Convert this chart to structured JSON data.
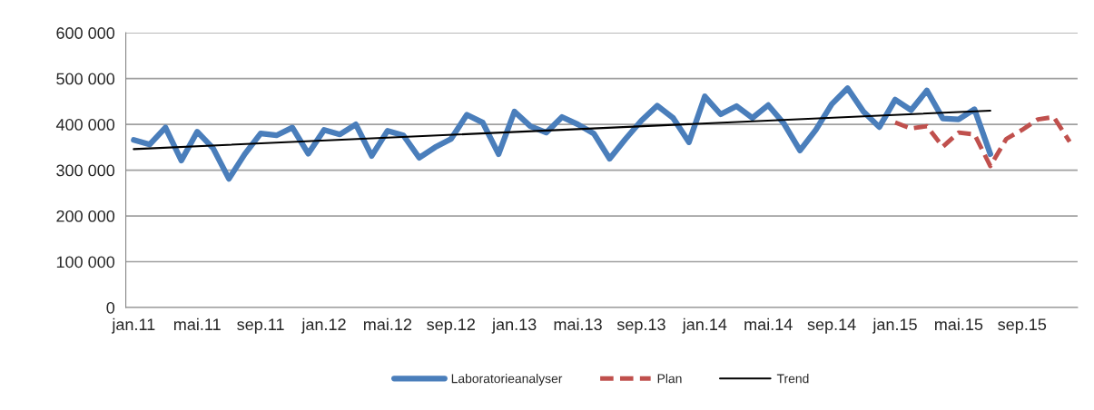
{
  "chart_data": {
    "type": "line",
    "categories": [
      "jan.11",
      null,
      null,
      null,
      "mai.11",
      null,
      null,
      null,
      "sep.11",
      null,
      null,
      null,
      "jan.12",
      null,
      null,
      null,
      "mai.12",
      null,
      null,
      null,
      "sep.12",
      null,
      null,
      null,
      "jan.13",
      null,
      null,
      null,
      "mai.13",
      null,
      null,
      null,
      "sep.13",
      null,
      null,
      null,
      "jan.14",
      null,
      null,
      null,
      "mai.14",
      null,
      null,
      null,
      "sep.14",
      null,
      null,
      null,
      "jan.15",
      null,
      null,
      null,
      "mai.15",
      null,
      null,
      null,
      "sep.15",
      null,
      null,
      null
    ],
    "series": [
      {
        "name": "Laboratorieanalyser",
        "color": "#4a7ebb",
        "line_style": "solid",
        "values": [
          366000,
          356000,
          393000,
          321000,
          384000,
          348000,
          281000,
          335000,
          380000,
          376000,
          393000,
          336000,
          388000,
          378000,
          400000,
          331000,
          386000,
          376000,
          327000,
          350000,
          368000,
          421000,
          404000,
          335000,
          428000,
          396000,
          382000,
          416000,
          400000,
          380000,
          325000,
          368000,
          408000,
          441000,
          414000,
          361000,
          461000,
          422000,
          440000,
          414000,
          442000,
          401000,
          343000,
          388000,
          444000,
          479000,
          428000,
          394000,
          454000,
          431000,
          474000,
          413000,
          411000,
          433000,
          335000,
          null,
          null,
          null,
          null,
          null
        ]
      },
      {
        "name": "Plan",
        "color": "#c0504d",
        "line_style": "dashed",
        "values": [
          null,
          null,
          null,
          null,
          null,
          null,
          null,
          null,
          null,
          null,
          null,
          null,
          null,
          null,
          null,
          null,
          null,
          null,
          null,
          null,
          null,
          null,
          null,
          null,
          null,
          null,
          null,
          null,
          null,
          null,
          null,
          null,
          null,
          null,
          null,
          null,
          null,
          null,
          null,
          null,
          null,
          null,
          null,
          null,
          null,
          null,
          null,
          null,
          404000,
          391000,
          396000,
          351000,
          382000,
          378000,
          309000,
          368000,
          388000,
          411000,
          416000,
          362000
        ]
      },
      {
        "name": "Trend",
        "color": "#000000",
        "line_style": "solid",
        "values": [
          346000,
          null,
          null,
          null,
          null,
          null,
          null,
          null,
          null,
          null,
          null,
          null,
          null,
          null,
          null,
          null,
          null,
          null,
          null,
          null,
          null,
          null,
          null,
          null,
          null,
          null,
          null,
          null,
          null,
          null,
          null,
          null,
          null,
          null,
          null,
          null,
          null,
          null,
          null,
          null,
          null,
          null,
          null,
          null,
          null,
          null,
          null,
          null,
          null,
          null,
          null,
          null,
          null,
          null,
          430000,
          null,
          null,
          null,
          null,
          null
        ]
      }
    ],
    "ylim": [
      0,
      600000
    ],
    "yticks": [
      {
        "value": 0,
        "label": "0"
      },
      {
        "value": 100000,
        "label": "100 000"
      },
      {
        "value": 200000,
        "label": "200 000"
      },
      {
        "value": 300000,
        "label": "300 000"
      },
      {
        "value": 400000,
        "label": "400 000"
      },
      {
        "value": 500000,
        "label": "500 000"
      },
      {
        "value": 600000,
        "label": "600 000"
      }
    ],
    "grid": "y",
    "legend": "bottom",
    "marker": "none"
  }
}
